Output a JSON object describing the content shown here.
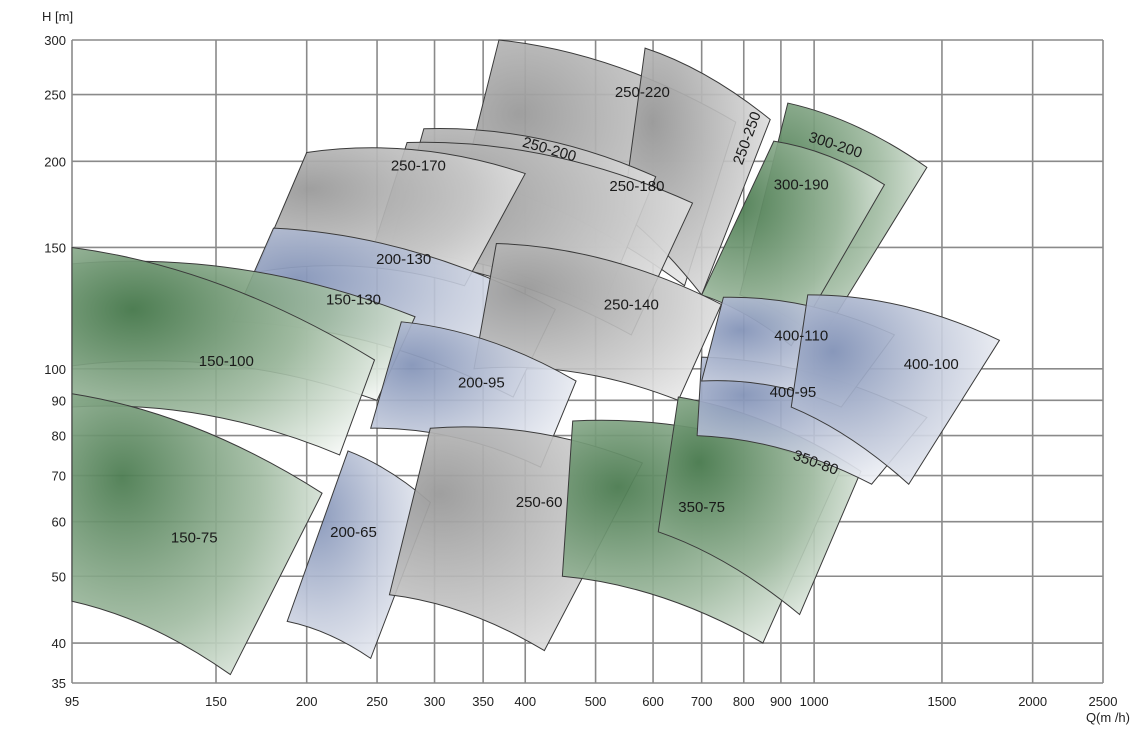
{
  "chart_data": {
    "type": "area",
    "title": "",
    "xlabel": "Q(m /h)",
    "ylabel": "H [m]",
    "x_scale": "log",
    "y_scale": "log",
    "xlim": [
      95,
      2500
    ],
    "ylim": [
      35,
      300
    ],
    "grid": true,
    "x_ticks": [
      95,
      150,
      200,
      250,
      300,
      350,
      400,
      500,
      600,
      700,
      800,
      900,
      1000,
      1500,
      2000,
      2500
    ],
    "y_ticks": [
      35,
      40,
      50,
      60,
      70,
      80,
      90,
      100,
      150,
      200,
      250,
      300
    ],
    "colors": {
      "green": "#5b8a5f",
      "blue": "#8d9bbb",
      "grey": "#9e9e9e",
      "grid": "#8a8a8a"
    },
    "regions": [
      {
        "label": "250-220",
        "color": "grey",
        "corners": {
          "top_left": [
            368,
            300
          ],
          "top_right": [
            780,
            228
          ],
          "bottom_right": [
            663,
            132
          ],
          "bottom_left": [
            330,
            190
          ]
        },
        "label_at": [
          580,
          248
        ]
      },
      {
        "label": "250-250",
        "color": "grey",
        "label_rotation": -70,
        "corners": {
          "top_left": [
            585,
            292
          ],
          "top_right": [
            870,
            230
          ],
          "bottom_right": [
            700,
            128
          ],
          "bottom_left": [
            545,
            168
          ]
        },
        "label_at": [
          820,
          215
        ]
      },
      {
        "label": "300-200",
        "color": "green",
        "label_rotation": 18,
        "corners": {
          "top_left": [
            920,
            243
          ],
          "top_right": [
            1430,
            196
          ],
          "bottom_right": [
            1020,
            110
          ],
          "bottom_left": [
            790,
            128
          ]
        },
        "label_at": [
          1065,
          208
        ]
      },
      {
        "label": "300-190",
        "color": "green",
        "corners": {
          "top_left": [
            880,
            214
          ],
          "top_right": [
            1250,
            185
          ],
          "bottom_right": [
            930,
            108
          ],
          "bottom_left": [
            700,
            128
          ]
        },
        "label_at": [
          960,
          182
        ]
      },
      {
        "label": "250-200",
        "color": "grey",
        "label_rotation": 16,
        "corners": {
          "top_left": [
            290,
            223
          ],
          "top_right": [
            605,
            190
          ],
          "bottom_right": [
            510,
            122
          ],
          "bottom_left": [
            260,
            148
          ]
        },
        "label_at": [
          430,
          205
        ]
      },
      {
        "label": "250-180",
        "color": "grey",
        "corners": {
          "top_left": [
            275,
            213
          ],
          "top_right": [
            680,
            174
          ],
          "bottom_right": [
            560,
            112
          ],
          "bottom_left": [
            245,
            146
          ]
        },
        "label_at": [
          570,
          181
        ]
      },
      {
        "label": "250-170",
        "color": "grey",
        "corners": {
          "top_left": [
            200,
            206
          ],
          "top_right": [
            400,
            192
          ],
          "bottom_right": [
            330,
            132
          ],
          "bottom_left": [
            170,
            138
          ]
        },
        "label_at": [
          285,
          194
        ]
      },
      {
        "label": "200-130",
        "color": "blue",
        "corners": {
          "top_left": [
            180,
            160
          ],
          "top_right": [
            440,
            122
          ],
          "bottom_right": [
            385,
            91
          ],
          "bottom_left": [
            158,
            117
          ]
        },
        "label_at": [
          272,
          142
        ]
      },
      {
        "label": "150-130",
        "color": "green",
        "corners": {
          "top_left": [
            95,
            142
          ],
          "top_right": [
            282,
            119
          ],
          "bottom_right": [
            250,
            90
          ],
          "bottom_left": [
            95,
            101
          ]
        },
        "label_at": [
          232,
          124
        ]
      },
      {
        "label": "150-100",
        "color": "green",
        "corners": {
          "top_left": [
            95,
            150
          ],
          "top_right": [
            248,
            103
          ],
          "bottom_right": [
            222,
            75
          ],
          "bottom_left": [
            95,
            88
          ]
        },
        "label_at": [
          155,
          101
        ]
      },
      {
        "label": "250-140",
        "color": "grey",
        "corners": {
          "top_left": [
            365,
            152
          ],
          "top_right": [
            745,
            124
          ],
          "bottom_right": [
            650,
            90
          ],
          "bottom_left": [
            340,
            100
          ]
        },
        "label_at": [
          560,
          122
        ]
      },
      {
        "label": "200-95",
        "color": "blue",
        "corners": {
          "top_left": [
            270,
            117
          ],
          "top_right": [
            470,
            96
          ],
          "bottom_right": [
            420,
            72
          ],
          "bottom_left": [
            245,
            82
          ]
        },
        "label_at": [
          348,
          94
        ]
      },
      {
        "label": "150-75",
        "color": "green",
        "corners": {
          "top_left": [
            95,
            92
          ],
          "top_right": [
            210,
            66
          ],
          "bottom_right": [
            157,
            36
          ],
          "bottom_left": [
            95,
            46
          ]
        },
        "label_at": [
          140,
          56
        ]
      },
      {
        "label": "200-65",
        "color": "blue",
        "corners": {
          "top_left": [
            228,
            76
          ],
          "top_right": [
            296,
            64
          ],
          "bottom_right": [
            245,
            38
          ],
          "bottom_left": [
            188,
            43
          ]
        },
        "label_at": [
          232,
          57
        ]
      },
      {
        "label": "250-60",
        "color": "grey",
        "corners": {
          "top_left": [
            296,
            82
          ],
          "top_right": [
            580,
            73
          ],
          "bottom_right": [
            425,
            39
          ],
          "bottom_left": [
            260,
            47
          ]
        },
        "label_at": [
          418,
          63
        ]
      },
      {
        "label": "350-75",
        "color": "green",
        "corners": {
          "top_left": [
            465,
            84
          ],
          "top_right": [
            1085,
            71
          ],
          "bottom_right": [
            850,
            40
          ],
          "bottom_left": [
            450,
            50
          ]
        },
        "label_at": [
          700,
          62
        ]
      },
      {
        "label": "350-80",
        "color": "green",
        "label_rotation": 20,
        "corners": {
          "top_left": [
            650,
            91
          ],
          "top_right": [
            1160,
            71
          ],
          "bottom_right": [
            955,
            44
          ],
          "bottom_left": [
            610,
            58
          ]
        },
        "label_at": [
          1000,
          72
        ]
      },
      {
        "label": "400-95",
        "color": "blue",
        "corners": {
          "top_left": [
            700,
            104
          ],
          "top_right": [
            1430,
            85
          ],
          "bottom_right": [
            1200,
            68
          ],
          "bottom_left": [
            690,
            80
          ]
        },
        "label_at": [
          935,
          91
        ]
      },
      {
        "label": "400-110",
        "color": "blue",
        "corners": {
          "top_left": [
            750,
            127
          ],
          "top_right": [
            1290,
            112
          ],
          "bottom_right": [
            1090,
            88
          ],
          "bottom_left": [
            700,
            96
          ]
        },
        "label_at": [
          960,
          110
        ]
      },
      {
        "label": "400-100",
        "color": "blue",
        "corners": {
          "top_left": [
            980,
            128
          ],
          "top_right": [
            1800,
            110
          ],
          "bottom_right": [
            1350,
            68
          ],
          "bottom_left": [
            930,
            88
          ]
        },
        "label_at": [
          1450,
          100
        ]
      }
    ]
  }
}
